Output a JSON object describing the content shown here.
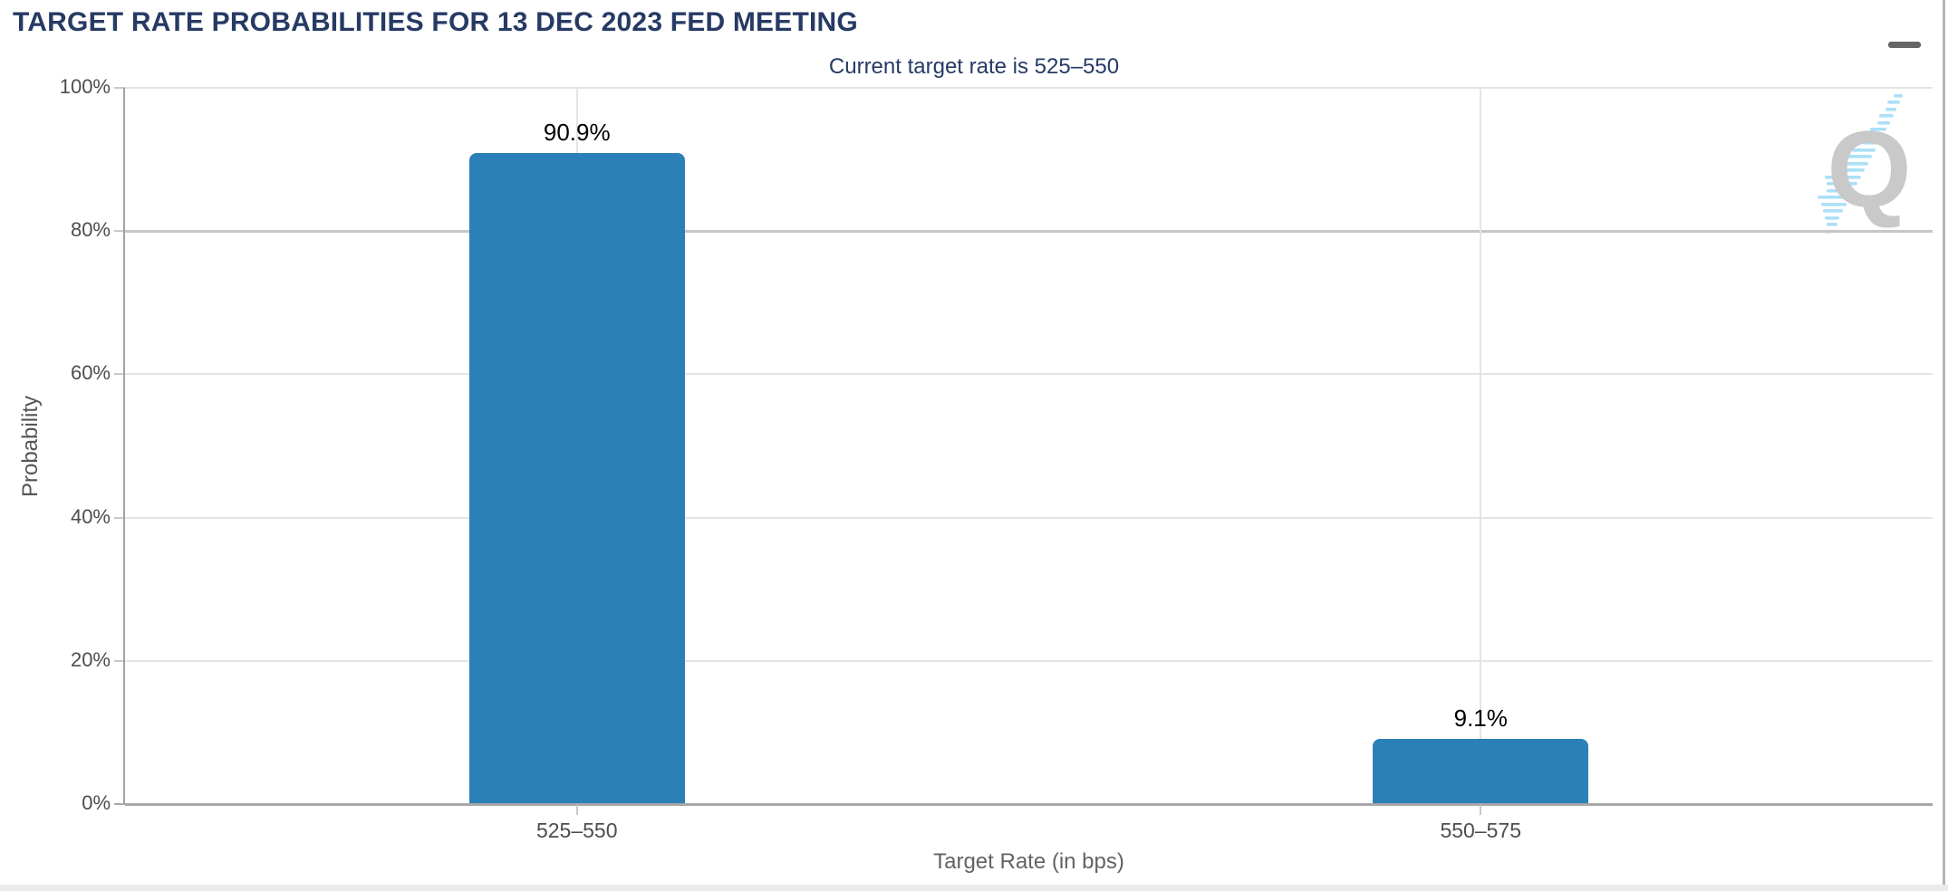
{
  "header": {
    "icons": {
      "menu": "hamburger-menu-icon"
    }
  },
  "chart_data": {
    "type": "bar",
    "title": "TARGET RATE PROBABILITIES FOR 13 DEC 2023 FED MEETING",
    "subtitle": "Current target rate is 525–550",
    "categories": [
      "525–550",
      "550–575"
    ],
    "values": [
      90.9,
      9.1
    ],
    "data_labels": [
      "90.9%",
      "9.1%"
    ],
    "xlabel": "Target Rate (in bps)",
    "ylabel": "Probability",
    "ylim": [
      0,
      100
    ],
    "ytick_labels": [
      "0%",
      "20%",
      "40%",
      "60%",
      "80%",
      "100%"
    ],
    "grid": true,
    "legend": "none",
    "colors": {
      "bar": "#2c80b8",
      "title": "#263a64",
      "grid": "#e4e4e4",
      "grid_major": "#c7c7c7",
      "axis_line": "#a8a8a8",
      "tick": "#c9c9c9",
      "tick_label": "#4d4d4d",
      "axis_title": "#636363"
    }
  },
  "watermark": {
    "letter": "Q",
    "name": "quikstrike-logo"
  }
}
